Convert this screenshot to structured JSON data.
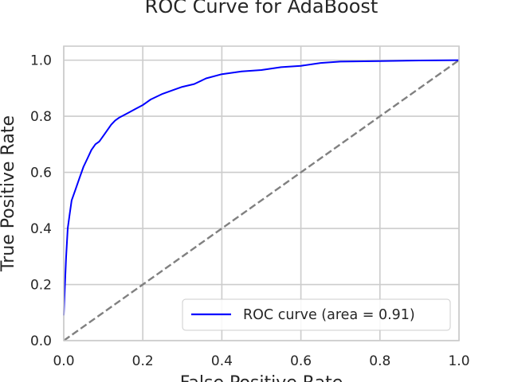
{
  "chart_data": {
    "type": "line",
    "title": "ROC Curve for AdaBoost",
    "xlabel": "False Positive Rate",
    "ylabel": "True Positive Rate",
    "xlim": [
      0.0,
      1.0
    ],
    "ylim": [
      0.0,
      1.05
    ],
    "xticks": [
      "0.0",
      "0.2",
      "0.4",
      "0.6",
      "0.8",
      "1.0"
    ],
    "yticks": [
      "0.0",
      "0.2",
      "0.4",
      "0.6",
      "0.8",
      "1.0"
    ],
    "grid": true,
    "legend_position": "lower-right",
    "series": [
      {
        "name": "ROC curve (area = 0.91)",
        "color": "#0000ff",
        "style": "solid",
        "x": [
          0.0,
          0.003,
          0.006,
          0.01,
          0.015,
          0.02,
          0.03,
          0.04,
          0.05,
          0.06,
          0.07,
          0.08,
          0.09,
          0.1,
          0.11,
          0.12,
          0.13,
          0.14,
          0.16,
          0.18,
          0.2,
          0.22,
          0.25,
          0.28,
          0.3,
          0.33,
          0.36,
          0.4,
          0.45,
          0.5,
          0.55,
          0.6,
          0.65,
          0.7,
          0.8,
          0.9,
          1.0
        ],
        "y": [
          0.09,
          0.2,
          0.3,
          0.4,
          0.45,
          0.5,
          0.54,
          0.58,
          0.62,
          0.65,
          0.68,
          0.7,
          0.71,
          0.73,
          0.75,
          0.77,
          0.785,
          0.795,
          0.81,
          0.825,
          0.84,
          0.86,
          0.88,
          0.895,
          0.905,
          0.915,
          0.935,
          0.95,
          0.96,
          0.965,
          0.975,
          0.98,
          0.99,
          0.995,
          0.997,
          0.999,
          1.0
        ]
      },
      {
        "name": "",
        "color": "#808080",
        "style": "dashed",
        "x": [
          0.0,
          1.0
        ],
        "y": [
          0.0,
          1.0
        ]
      }
    ]
  }
}
